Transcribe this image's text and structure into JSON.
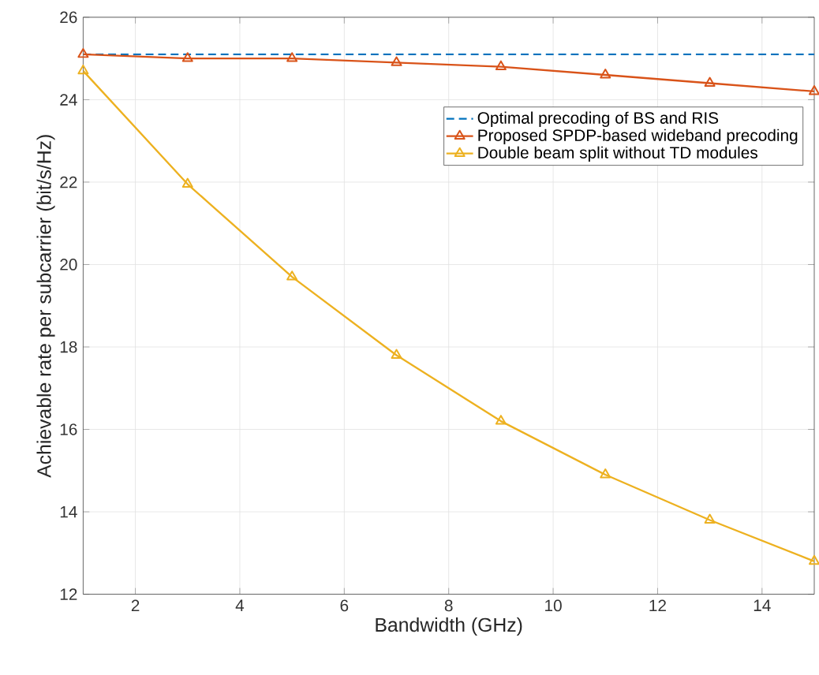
{
  "chart_data": {
    "type": "line",
    "xlabel": "Bandwidth (GHz)",
    "ylabel": "Achievable rate per subcarrier (bit/s/Hz)",
    "xlim": [
      1,
      15
    ],
    "ylim": [
      12,
      26
    ],
    "xticks": [
      2,
      4,
      6,
      8,
      10,
      12,
      14
    ],
    "yticks": [
      12,
      14,
      16,
      18,
      20,
      22,
      24,
      26
    ],
    "grid": true,
    "legend": "top right",
    "series": [
      {
        "name": "Optimal precoding of BS and RIS",
        "color": "#0072bd",
        "line_style": "dashed",
        "marker": "none",
        "x": [
          1,
          15
        ],
        "values": [
          25.1,
          25.1
        ]
      },
      {
        "name": "Proposed SPDP-based wideband precoding",
        "color": "#d95319",
        "line_style": "solid",
        "marker": "triangle down",
        "x": [
          1,
          3,
          5,
          7,
          9,
          11,
          13,
          15
        ],
        "values": [
          25.1,
          25.0,
          25.0,
          24.9,
          24.8,
          24.6,
          24.4,
          24.2
        ]
      },
      {
        "name": "Double beam split without TD modules",
        "color": "#edb120",
        "line_style": "solid",
        "marker": "triangle",
        "x": [
          1,
          3,
          5,
          7,
          9,
          11,
          13,
          15
        ],
        "values": [
          24.7,
          21.95,
          19.7,
          17.8,
          16.2,
          14.9,
          13.8,
          12.8
        ]
      }
    ]
  }
}
